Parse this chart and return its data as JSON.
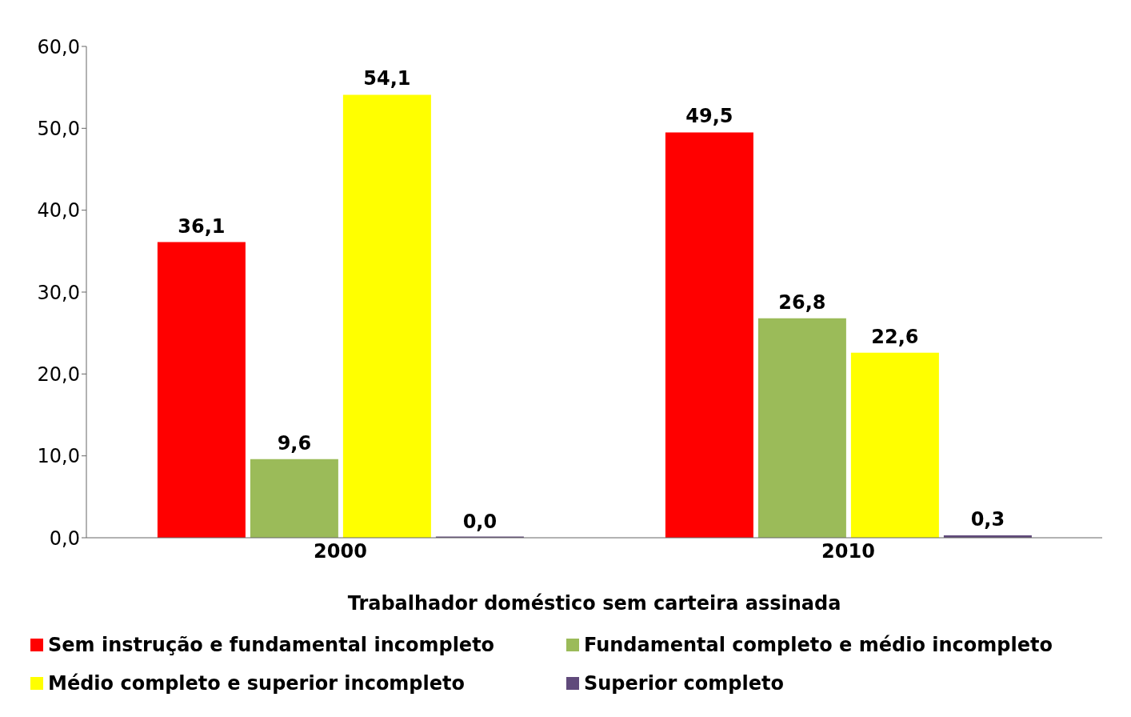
{
  "chart_data": {
    "type": "bar",
    "xlabel": "Trabalhador doméstico sem carteira assinada",
    "categories": [
      "2000",
      "2010"
    ],
    "series": [
      {
        "name": "Sem instrução e fundamental incompleto",
        "color": "#ff0000",
        "values": [
          36.1,
          49.5
        ],
        "value_labels": [
          "36,1",
          "49,5"
        ]
      },
      {
        "name": "Fundamental completo e médio incompleto",
        "color": "#9bbb59",
        "values": [
          9.6,
          26.8
        ],
        "value_labels": [
          "9,6",
          "26,8"
        ]
      },
      {
        "name": "Médio completo e superior incompleto",
        "color": "#ffff00",
        "values": [
          54.1,
          22.6
        ],
        "value_labels": [
          "54,1",
          "22,6"
        ]
      },
      {
        "name": "Superior completo",
        "color": "#604a7b",
        "values": [
          0.0,
          0.3
        ],
        "value_labels": [
          "0,0",
          "0,3"
        ]
      }
    ],
    "ylim": [
      0,
      60
    ],
    "yticks": [
      {
        "value": 0,
        "label": "0,0"
      },
      {
        "value": 10,
        "label": "10,0"
      },
      {
        "value": 20,
        "label": "20,0"
      },
      {
        "value": 30,
        "label": "30,0"
      },
      {
        "value": 40,
        "label": "40,0"
      },
      {
        "value": 50,
        "label": "50,0"
      },
      {
        "value": 60,
        "label": "60,0"
      }
    ],
    "legend": "bottom",
    "grid": false
  }
}
